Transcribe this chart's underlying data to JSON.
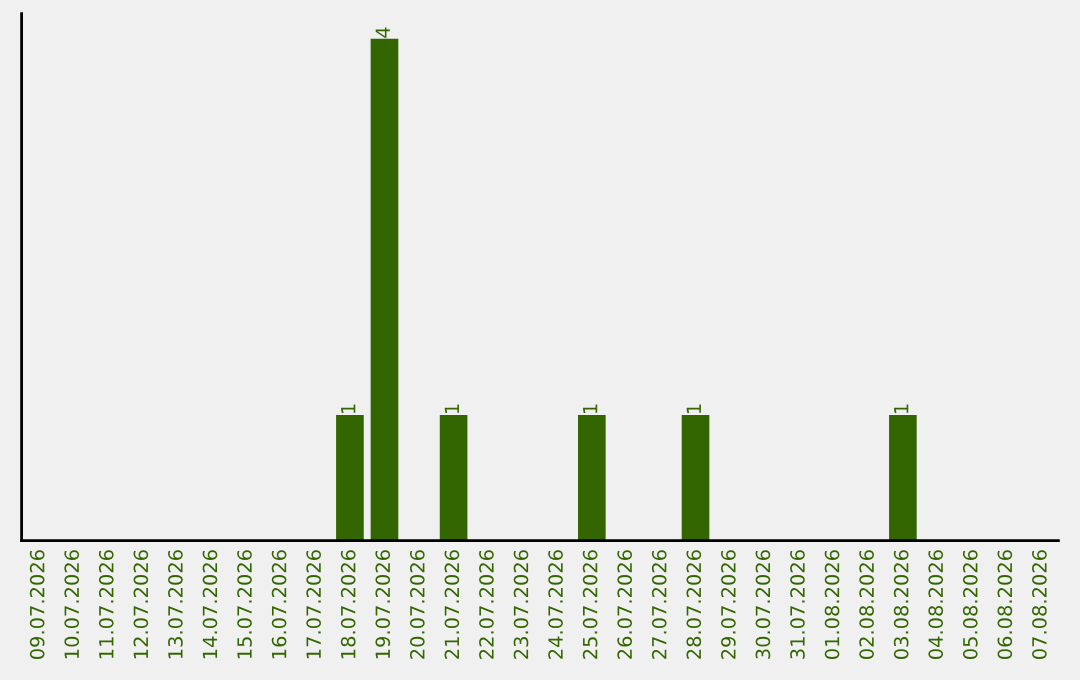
{
  "chart_data": {
    "type": "bar",
    "categories": [
      "09.07.2026",
      "10.07.2026",
      "11.07.2026",
      "12.07.2026",
      "13.07.2026",
      "14.07.2026",
      "15.07.2026",
      "16.07.2026",
      "17.07.2026",
      "18.07.2026",
      "19.07.2026",
      "20.07.2026",
      "21.07.2026",
      "22.07.2026",
      "23.07.2026",
      "24.07.2026",
      "25.07.2026",
      "26.07.2026",
      "27.07.2026",
      "28.07.2026",
      "29.07.2026",
      "30.07.2026",
      "31.07.2026",
      "01.08.2026",
      "02.08.2026",
      "03.08.2026",
      "04.08.2026",
      "05.08.2026",
      "06.08.2026",
      "07.08.2026"
    ],
    "values": [
      0,
      0,
      0,
      0,
      0,
      0,
      0,
      0,
      0,
      1,
      4,
      0,
      1,
      0,
      0,
      0,
      1,
      0,
      0,
      1,
      0,
      0,
      0,
      0,
      0,
      1,
      0,
      0,
      0,
      0
    ],
    "color": "#336600",
    "ylim": [
      0,
      4.2
    ],
    "value_labels": [
      null,
      null,
      null,
      null,
      null,
      null,
      null,
      null,
      null,
      "1",
      "4",
      null,
      "1",
      null,
      null,
      null,
      "1",
      null,
      null,
      "1",
      null,
      null,
      null,
      null,
      null,
      "1",
      null,
      null,
      null,
      null
    ],
    "tick_labels": "x",
    "grid": false,
    "legend": false
  }
}
